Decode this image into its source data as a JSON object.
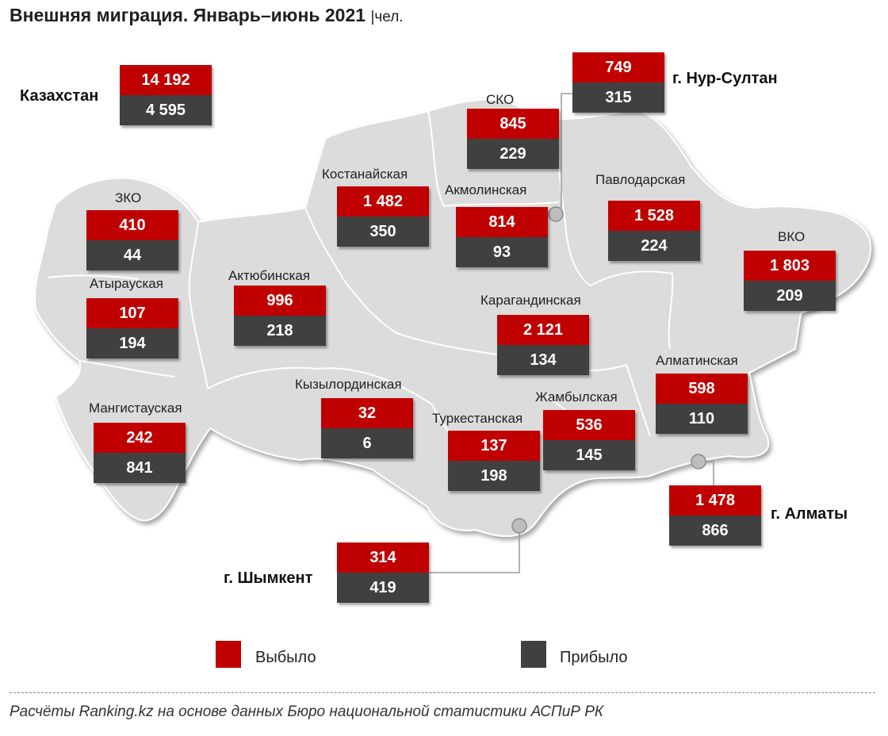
{
  "title": "Внешняя миграция. Январь–июнь 2021",
  "unit": "|чел.",
  "colors": {
    "left": "#c00000",
    "arrived": "#404040",
    "map": "#dcdcdc"
  },
  "regions": {
    "kz": {
      "name": "Казахстан",
      "left": "14 192",
      "arrived": "4 595"
    },
    "nur": {
      "name": "г. Нур-Султан",
      "left": "749",
      "arrived": "315"
    },
    "sko": {
      "name": "СКО",
      "left": "845",
      "arrived": "229"
    },
    "kost": {
      "name": "Костанайская",
      "left": "1 482",
      "arrived": "350"
    },
    "akm": {
      "name": "Акмолинская",
      "left": "814",
      "arrived": "93"
    },
    "pav": {
      "name": "Павлодарская",
      "left": "1 528",
      "arrived": "224"
    },
    "zko": {
      "name": "ЗКО",
      "left": "410",
      "arrived": "44"
    },
    "atyr": {
      "name": "Атырауская",
      "left": "107",
      "arrived": "194"
    },
    "akt": {
      "name": "Актюбинская",
      "left": "996",
      "arrived": "218"
    },
    "vko": {
      "name": "ВКО",
      "left": "1 803",
      "arrived": "209"
    },
    "kar": {
      "name": "Карагандинская",
      "left": "2 121",
      "arrived": "134"
    },
    "alm": {
      "name": "Алматинская",
      "left": "598",
      "arrived": "110"
    },
    "kyz": {
      "name": "Кызылординская",
      "left": "32",
      "arrived": "6"
    },
    "zham": {
      "name": "Жамбылская",
      "left": "536",
      "arrived": "145"
    },
    "turk": {
      "name": "Туркестанская",
      "left": "137",
      "arrived": "198"
    },
    "mang": {
      "name": "Мангистауская",
      "left": "242",
      "arrived": "841"
    },
    "almaty": {
      "name": "г. Алматы",
      "left": "1 478",
      "arrived": "866"
    },
    "shym": {
      "name": "г. Шымкент",
      "left": "314",
      "arrived": "419"
    }
  },
  "legend": {
    "left": "Выбыло",
    "arrived": "Прибыло"
  },
  "source": "Расчёты Ranking.kz на основе данных Бюро национальной статистики АСПиР РК"
}
